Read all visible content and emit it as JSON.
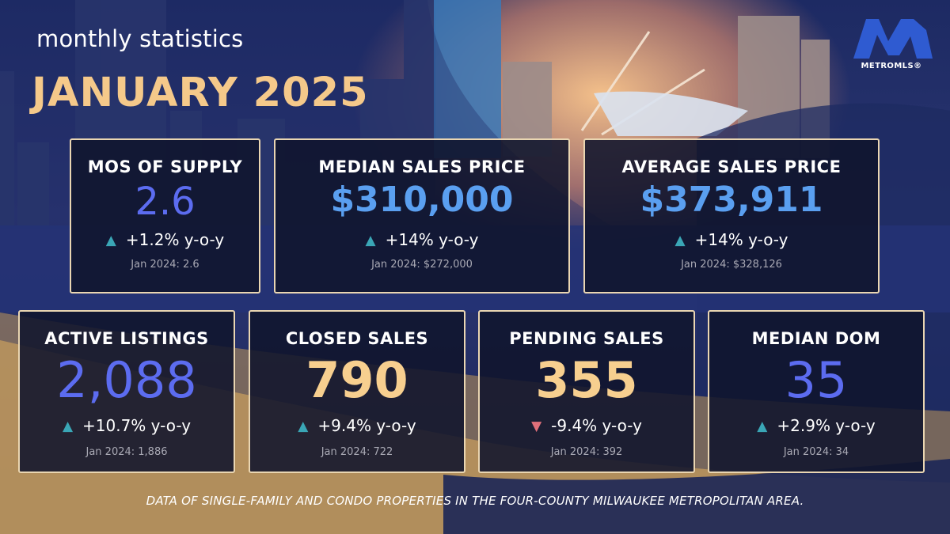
{
  "header": {
    "subtitle": "monthly statistics",
    "title": "JANUARY 2025"
  },
  "logo": {
    "wordmark": "METROMLS®",
    "icon": "metromls-m-logo-icon"
  },
  "colors": {
    "title": "#f5c98a",
    "card_border": "#ead6b2",
    "value_blue": "#5a9ff0",
    "value_indigo": "#5c6cf0",
    "value_gold": "#f7cf8f",
    "up_arrow": "#3aa6b6",
    "down_arrow": "#e0707a"
  },
  "stats": {
    "mos_supply": {
      "label": "MOS OF SUPPLY",
      "value": "2.6",
      "change": "+1.2% y-o-y",
      "direction": "up",
      "prev": "Jan 2024: 2.6"
    },
    "median_price": {
      "label": "MEDIAN SALES PRICE",
      "value": "$310,000",
      "change": "+14% y-o-y",
      "direction": "up",
      "prev": "Jan 2024: $272,000"
    },
    "average_price": {
      "label": "AVERAGE SALES PRICE",
      "value": "$373,911",
      "change": "+14% y-o-y",
      "direction": "up",
      "prev": "Jan 2024: $328,126"
    },
    "active_listings": {
      "label": "ACTIVE LISTINGS",
      "value": "2,088",
      "change": "+10.7% y-o-y",
      "direction": "up",
      "prev": "Jan 2024: 1,886"
    },
    "closed_sales": {
      "label": "CLOSED SALES",
      "value": "790",
      "change": "+9.4% y-o-y",
      "direction": "up",
      "prev": "Jan 2024: 722"
    },
    "pending_sales": {
      "label": "PENDING SALES",
      "value": "355",
      "change": "-9.4% y-o-y",
      "direction": "down",
      "prev": "Jan 2024: 392"
    },
    "median_dom": {
      "label": "MEDIAN DOM",
      "value": "35",
      "change": "+2.9% y-o-y",
      "direction": "up",
      "prev": "Jan 2024: 34"
    }
  },
  "footer": "DATA OF SINGLE-FAMILY AND CONDO PROPERTIES IN THE FOUR-COUNTY MILWAUKEE METROPOLITAN AREA."
}
